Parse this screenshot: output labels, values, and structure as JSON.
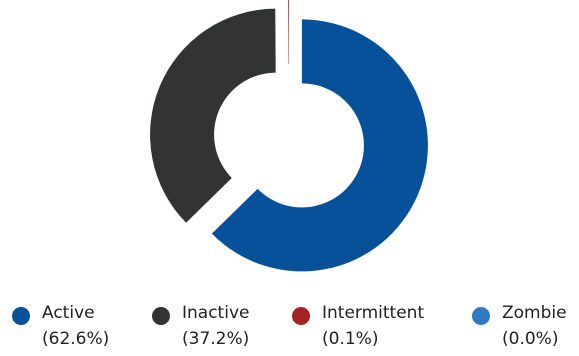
{
  "chart_data": {
    "type": "pie",
    "donut": true,
    "slices": [
      {
        "name": "Active",
        "percent_label": "(62.6%)",
        "value": 62.6,
        "color": "#06519a"
      },
      {
        "name": "Inactive",
        "percent_label": "(37.2%)",
        "value": 37.2,
        "color": "#323333"
      },
      {
        "name": "Intermittent",
        "percent_label": "(0.1%)",
        "value": 0.1,
        "color": "#a52222"
      },
      {
        "name": "Zombie",
        "percent_label": "(0.0%)",
        "value": 0.0,
        "color": "#2e7bc4"
      }
    ],
    "legend_position": "bottom"
  }
}
